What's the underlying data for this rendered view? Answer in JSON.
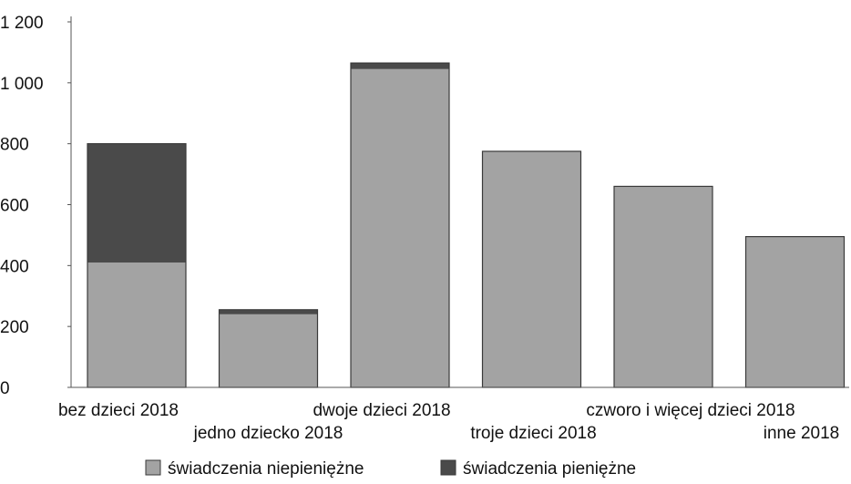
{
  "chart_data": {
    "type": "bar",
    "stacked": true,
    "title": "",
    "xlabel": "",
    "ylabel": "",
    "ylim": [
      0,
      1200
    ],
    "yticks": [
      0,
      200,
      400,
      600,
      800,
      1000,
      1200
    ],
    "ytick_labels": [
      "0",
      "200",
      "400",
      "600",
      "800",
      "1 000",
      "1 200"
    ],
    "grid": false,
    "legend_position": "bottom",
    "categories": [
      "bez dzieci 2018",
      "jedno dziecko 2018",
      "dwoje dzieci 2018",
      "troje dzieci 2018",
      "czworo i więcej dzieci 2018",
      "inne 2018"
    ],
    "series": [
      {
        "name": "świadczenia niepieniężne",
        "color": "#a3a3a3",
        "values": [
          410,
          240,
          1045,
          775,
          660,
          495
        ]
      },
      {
        "name": "świadczenia pieniężne",
        "color": "#4a4a4a",
        "values": [
          390,
          15,
          20,
          0,
          0,
          0
        ]
      }
    ]
  }
}
